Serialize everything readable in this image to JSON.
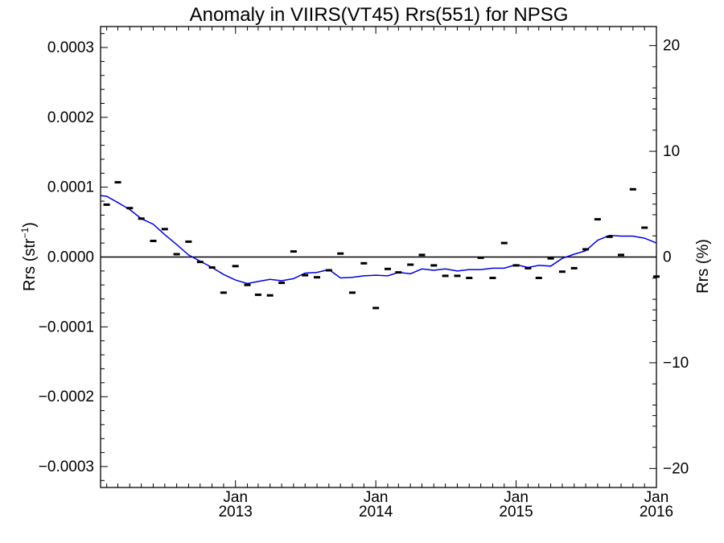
{
  "chart_data": {
    "type": "line",
    "title": "Anomaly in VIIRS(VT45) Rrs(551) for NPSG",
    "ylabel": "Rrs (str",
    "ylabel_sup": "−1",
    "ylabel_close": ")",
    "ylabel_right": "Rrs (%)",
    "ylim": [
      -0.00033,
      0.00033
    ],
    "ylim_right": [
      -21.8,
      21.8
    ],
    "xlim": [
      "2012-01-16",
      "2016-01-01"
    ],
    "yticks": [
      {
        "value": 0.0003,
        "label": "0.0003"
      },
      {
        "value": 0.0002,
        "label": "0.0002"
      },
      {
        "value": 0.0001,
        "label": "0.0001"
      },
      {
        "value": 0.0,
        "label": "0.0000"
      },
      {
        "value": -0.0001,
        "label": "−0.0001"
      },
      {
        "value": -0.0002,
        "label": "−0.0002"
      },
      {
        "value": -0.0003,
        "label": "−0.0003"
      }
    ],
    "yticks_right": [
      {
        "value": 20,
        "label": "20"
      },
      {
        "value": 10,
        "label": "10"
      },
      {
        "value": 0,
        "label": "0"
      },
      {
        "value": -10,
        "label": "−10"
      },
      {
        "value": -20,
        "label": "−20"
      }
    ],
    "xticks": [
      {
        "date": "2013-01-01",
        "month": "Jan",
        "year": "2013"
      },
      {
        "date": "2014-01-01",
        "month": "Jan",
        "year": "2014"
      },
      {
        "date": "2015-01-01",
        "month": "Jan",
        "year": "2015"
      },
      {
        "date": "2016-01-01",
        "month": "Jan",
        "year": "2016"
      }
    ],
    "reference_line": 0,
    "grid": false,
    "series": [
      {
        "style": "markers",
        "color": "#000000",
        "points": [
          [
            "2012-02-01",
            7.5e-05
          ],
          [
            "2012-03-01",
            0.000107
          ],
          [
            "2012-04-01",
            7e-05
          ],
          [
            "2012-05-01",
            5.5e-05
          ],
          [
            "2012-06-01",
            2.3e-05
          ],
          [
            "2012-07-01",
            4e-05
          ],
          [
            "2012-08-01",
            4e-06
          ],
          [
            "2012-09-01",
            2.2e-05
          ],
          [
            "2012-10-01",
            -7e-06
          ],
          [
            "2012-11-01",
            -1.5e-05
          ],
          [
            "2012-12-01",
            -5.1e-05
          ],
          [
            "2013-01-01",
            -1.3e-05
          ],
          [
            "2013-02-01",
            -4e-05
          ],
          [
            "2013-03-01",
            -5.4e-05
          ],
          [
            "2013-04-01",
            -5.5e-05
          ],
          [
            "2013-05-01",
            -3.7e-05
          ],
          [
            "2013-06-01",
            8e-06
          ],
          [
            "2013-07-01",
            -2.6e-05
          ],
          [
            "2013-08-01",
            -2.9e-05
          ],
          [
            "2013-09-01",
            -1.9e-05
          ],
          [
            "2013-10-01",
            5e-06
          ],
          [
            "2013-11-01",
            -5.1e-05
          ],
          [
            "2013-12-01",
            -9e-06
          ],
          [
            "2014-01-01",
            -7.3e-05
          ],
          [
            "2014-02-01",
            -1.7e-05
          ],
          [
            "2014-03-01",
            -2.2e-05
          ],
          [
            "2014-04-01",
            -1.1e-05
          ],
          [
            "2014-05-01",
            3e-06
          ],
          [
            "2014-06-01",
            -1.2e-05
          ],
          [
            "2014-07-01",
            -2.7e-05
          ],
          [
            "2014-08-01",
            -2.7e-05
          ],
          [
            "2014-09-01",
            -3e-05
          ],
          [
            "2014-10-01",
            -1e-06
          ],
          [
            "2014-11-01",
            -3e-05
          ],
          [
            "2014-12-01",
            2e-05
          ],
          [
            "2015-01-01",
            -1.2e-05
          ],
          [
            "2015-02-01",
            -1.6e-05
          ],
          [
            "2015-03-01",
            -3e-05
          ],
          [
            "2015-04-01",
            -2e-06
          ],
          [
            "2015-05-01",
            -2.1e-05
          ],
          [
            "2015-06-01",
            -1.6e-05
          ],
          [
            "2015-07-01",
            1.1e-05
          ],
          [
            "2015-08-01",
            5.4e-05
          ],
          [
            "2015-09-01",
            2.9e-05
          ],
          [
            "2015-10-01",
            3e-06
          ],
          [
            "2015-11-01",
            9.7e-05
          ],
          [
            "2015-12-01",
            4.2e-05
          ],
          [
            "2016-01-01",
            -2.8e-05
          ]
        ]
      },
      {
        "style": "line",
        "color": "#0000e6",
        "points": [
          [
            "2012-01-16",
            8.8e-05
          ],
          [
            "2012-02-01",
            8.7e-05
          ],
          [
            "2012-03-01",
            7.8e-05
          ],
          [
            "2012-04-01",
            6.8e-05
          ],
          [
            "2012-05-01",
            5.5e-05
          ],
          [
            "2012-06-01",
            4.7e-05
          ],
          [
            "2012-07-01",
            3.2e-05
          ],
          [
            "2012-08-01",
            1.8e-05
          ],
          [
            "2012-09-01",
            3e-06
          ],
          [
            "2012-10-01",
            -6e-06
          ],
          [
            "2012-11-01",
            -1.5e-05
          ],
          [
            "2012-12-01",
            -2.5e-05
          ],
          [
            "2013-01-01",
            -3.3e-05
          ],
          [
            "2013-02-01",
            -3.8e-05
          ],
          [
            "2013-03-01",
            -3.5e-05
          ],
          [
            "2013-04-01",
            -3.2e-05
          ],
          [
            "2013-05-01",
            -3.4e-05
          ],
          [
            "2013-06-01",
            -3.1e-05
          ],
          [
            "2013-07-01",
            -2.3e-05
          ],
          [
            "2013-08-01",
            -2.2e-05
          ],
          [
            "2013-09-01",
            -1.8e-05
          ],
          [
            "2013-10-01",
            -3e-05
          ],
          [
            "2013-11-01",
            -2.9e-05
          ],
          [
            "2013-12-01",
            -2.7e-05
          ],
          [
            "2014-01-01",
            -2.6e-05
          ],
          [
            "2014-02-01",
            -2.7e-05
          ],
          [
            "2014-03-01",
            -2.2e-05
          ],
          [
            "2014-04-01",
            -2.4e-05
          ],
          [
            "2014-05-01",
            -1.7e-05
          ],
          [
            "2014-06-01",
            -1.9e-05
          ],
          [
            "2014-07-01",
            -1.7e-05
          ],
          [
            "2014-08-01",
            -2e-05
          ],
          [
            "2014-09-01",
            -1.8e-05
          ],
          [
            "2014-10-01",
            -1.8e-05
          ],
          [
            "2014-11-01",
            -1.6e-05
          ],
          [
            "2014-12-01",
            -1.6e-05
          ],
          [
            "2015-01-01",
            -1.1e-05
          ],
          [
            "2015-02-01",
            -1.5e-05
          ],
          [
            "2015-03-01",
            -1.2e-05
          ],
          [
            "2015-04-01",
            -1.3e-05
          ],
          [
            "2015-05-01",
            -2e-06
          ],
          [
            "2015-06-01",
            4e-06
          ],
          [
            "2015-07-01",
            9e-06
          ],
          [
            "2015-08-01",
            2.4e-05
          ],
          [
            "2015-09-01",
            3.1e-05
          ],
          [
            "2015-10-01",
            3e-05
          ],
          [
            "2015-11-01",
            3e-05
          ],
          [
            "2015-12-01",
            2.7e-05
          ],
          [
            "2016-01-01",
            2e-05
          ]
        ]
      }
    ]
  }
}
